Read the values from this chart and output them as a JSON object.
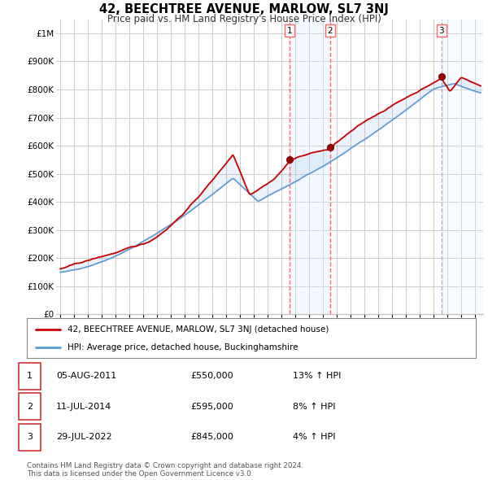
{
  "title": "42, BEECHTREE AVENUE, MARLOW, SL7 3NJ",
  "subtitle": "Price paid vs. HM Land Registry's House Price Index (HPI)",
  "red_label": "42, BEECHTREE AVENUE, MARLOW, SL7 3NJ (detached house)",
  "blue_label": "HPI: Average price, detached house, Buckinghamshire",
  "transactions": [
    {
      "num": 1,
      "date_str": "05-AUG-2011",
      "price": 550000,
      "hpi_pct": "13% ↑ HPI",
      "year": 2011.59
    },
    {
      "num": 2,
      "date_str": "11-JUL-2014",
      "price": 595000,
      "hpi_pct": "8% ↑ HPI",
      "year": 2014.53
    },
    {
      "num": 3,
      "date_str": "29-JUL-2022",
      "price": 845000,
      "hpi_pct": "4% ↑ HPI",
      "year": 2022.58
    }
  ],
  "footer": "Contains HM Land Registry data © Crown copyright and database right 2024.\nThis data is licensed under the Open Government Licence v3.0.",
  "ylim": [
    0,
    1050000
  ],
  "yticks": [
    0,
    100000,
    200000,
    300000,
    400000,
    500000,
    600000,
    700000,
    800000,
    900000,
    1000000
  ],
  "ytick_labels": [
    "£0",
    "£100K",
    "£200K",
    "£300K",
    "£400K",
    "£500K",
    "£600K",
    "£700K",
    "£800K",
    "£900K",
    "£1M"
  ],
  "red_color": "#cc0000",
  "blue_color": "#5b9bd5",
  "highlight_color_12": "#ddeeff",
  "highlight_color_3": "#ddeeff",
  "vline_color_12": "#ff6666",
  "vline_color_3": "#aaaacc",
  "background_color": "#ffffff",
  "grid_color": "#cccccc"
}
